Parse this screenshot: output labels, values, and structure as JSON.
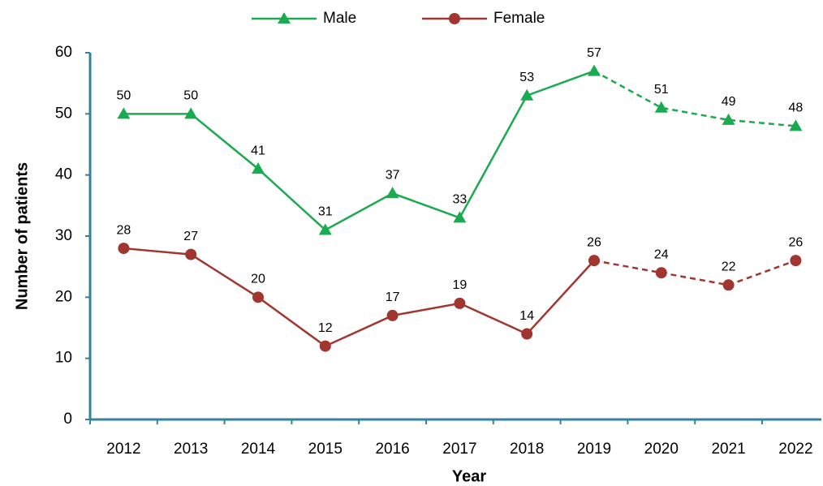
{
  "chart_data": {
    "type": "line",
    "x_label": "Year",
    "y_label": "Number of patients",
    "categories": [
      "2012",
      "2013",
      "2014",
      "2015",
      "2016",
      "2017",
      "2018",
      "2019",
      "2020",
      "2021",
      "2022"
    ],
    "series": [
      {
        "name": "Male",
        "color": "#1aab50",
        "marker": "triangle",
        "values": [
          50,
          50,
          41,
          31,
          37,
          33,
          53,
          57,
          51,
          49,
          48
        ]
      },
      {
        "name": "Female",
        "color": "#a0362f",
        "marker": "circle",
        "values": [
          28,
          27,
          20,
          12,
          17,
          19,
          14,
          26,
          24,
          22,
          26
        ]
      }
    ],
    "dashed_after": "2019",
    "ylim": [
      0,
      60
    ],
    "yticks": [
      0,
      10,
      20,
      30,
      40,
      50,
      60
    ],
    "grid": false,
    "legend": "top",
    "axis_color": "#31849b"
  }
}
